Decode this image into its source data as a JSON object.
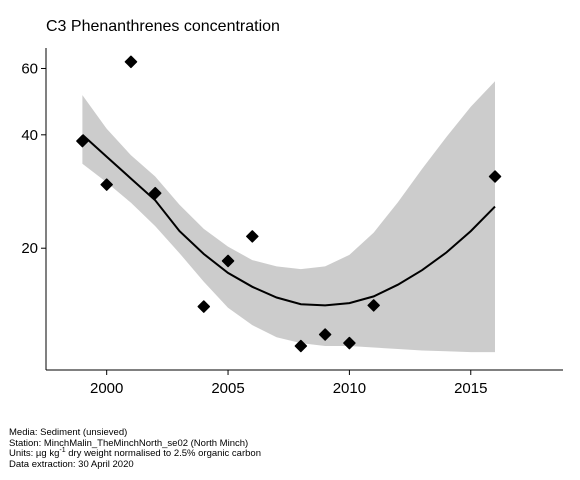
{
  "chart_data": {
    "type": "scatter",
    "title": "C3 Phenanthrenes concentration",
    "xlabel": "",
    "ylabel": "",
    "xlim": [
      1997.5,
      2018.8
    ],
    "ylim": [
      9.5,
      68
    ],
    "log_y": true,
    "x_ticks": [
      2000,
      2005,
      2010,
      2015
    ],
    "y_ticks": [
      20,
      40,
      60
    ],
    "grid": false,
    "points": [
      {
        "x": 1999,
        "y": 38.5
      },
      {
        "x": 2000,
        "y": 29.5
      },
      {
        "x": 2001,
        "y": 62.5
      },
      {
        "x": 2002,
        "y": 28.0
      },
      {
        "x": 2004,
        "y": 14.0
      },
      {
        "x": 2005,
        "y": 18.5
      },
      {
        "x": 2006,
        "y": 21.5
      },
      {
        "x": 2008,
        "y": 11.0
      },
      {
        "x": 2009,
        "y": 11.8
      },
      {
        "x": 2010,
        "y": 11.2
      },
      {
        "x": 2011,
        "y": 14.1
      },
      {
        "x": 2016,
        "y": 31.0
      }
    ],
    "trend": {
      "x": [
        1999,
        2000,
        2001,
        2002,
        2003,
        2004,
        2005,
        2006,
        2007,
        2008,
        2009,
        2010,
        2011,
        2012,
        2013,
        2014,
        2015,
        2016
      ],
      "fit": [
        40.0,
        35.0,
        30.6,
        26.8,
        22.2,
        19.3,
        17.2,
        15.8,
        14.8,
        14.2,
        14.1,
        14.3,
        14.9,
        16.0,
        17.5,
        19.5,
        22.2,
        25.8
      ],
      "lower": [
        33.5,
        29.9,
        26.4,
        22.9,
        19.4,
        16.3,
        13.9,
        12.5,
        11.6,
        11.2,
        11.0,
        11.0,
        10.9,
        10.8,
        10.7,
        10.65,
        10.6,
        10.6
      ],
      "upper": [
        51.0,
        41.5,
        35.3,
        31.0,
        26.1,
        22.5,
        20.2,
        18.6,
        17.9,
        17.6,
        17.9,
        19.2,
        22.0,
        26.5,
        32.5,
        39.5,
        47.5,
        55.5
      ]
    },
    "colors": {
      "points": "#000000",
      "band": "#cccccc",
      "line": "#000000"
    }
  },
  "footer": {
    "media": "Media: Sediment (unsieved)",
    "station": "Station: MinchMalin_TheMinchNorth_se02 (North Minch)",
    "units_prefix": "Units: µg kg",
    "units_sup": "-1",
    "units_suffix": " dry weight normalised to 2.5% organic carbon",
    "extraction": "Data extraction: 30 April 2020"
  }
}
